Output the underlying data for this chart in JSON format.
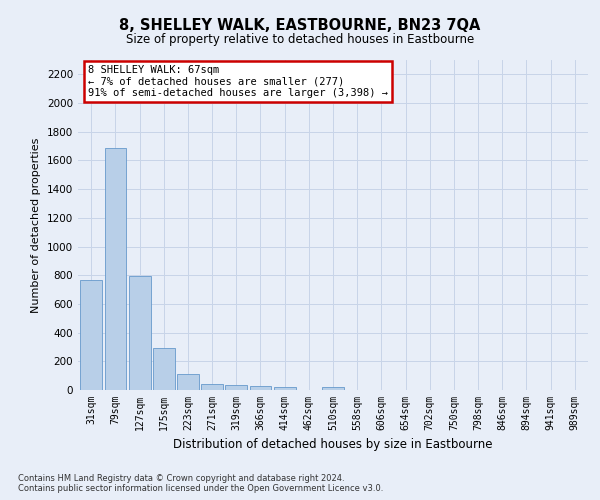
{
  "title": "8, SHELLEY WALK, EASTBOURNE, BN23 7QA",
  "subtitle": "Size of property relative to detached houses in Eastbourne",
  "xlabel": "Distribution of detached houses by size in Eastbourne",
  "ylabel": "Number of detached properties",
  "categories": [
    "31sqm",
    "79sqm",
    "127sqm",
    "175sqm",
    "223sqm",
    "271sqm",
    "319sqm",
    "366sqm",
    "414sqm",
    "462sqm",
    "510sqm",
    "558sqm",
    "606sqm",
    "654sqm",
    "702sqm",
    "750sqm",
    "798sqm",
    "846sqm",
    "894sqm",
    "941sqm",
    "989sqm"
  ],
  "values": [
    770,
    1690,
    795,
    295,
    110,
    45,
    32,
    25,
    22,
    0,
    22,
    0,
    0,
    0,
    0,
    0,
    0,
    0,
    0,
    0,
    0
  ],
  "bar_color": "#b8cfe8",
  "bar_edge_color": "#6699cc",
  "annotation_title": "8 SHELLEY WALK: 67sqm",
  "annotation_line1": "← 7% of detached houses are smaller (277)",
  "annotation_line2": "91% of semi-detached houses are larger (3,398) →",
  "annotation_box_facecolor": "#ffffff",
  "annotation_box_edge": "#cc0000",
  "ylim": [
    0,
    2300
  ],
  "yticks": [
    0,
    200,
    400,
    600,
    800,
    1000,
    1200,
    1400,
    1600,
    1800,
    2000,
    2200
  ],
  "grid_color": "#c8d4e8",
  "bg_color": "#e8eef8",
  "footer1": "Contains HM Land Registry data © Crown copyright and database right 2024.",
  "footer2": "Contains public sector information licensed under the Open Government Licence v3.0."
}
